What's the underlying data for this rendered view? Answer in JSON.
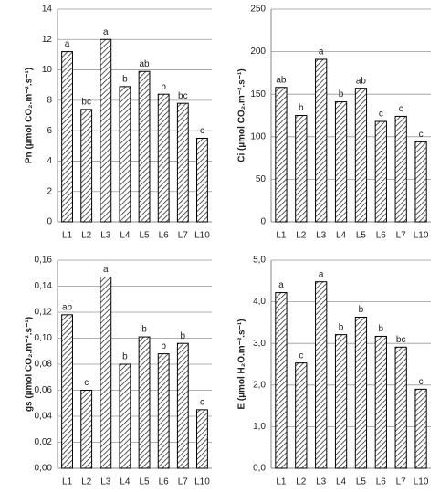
{
  "chart_data": [
    {
      "type": "bar",
      "ylabel": "Pn (µmol CO₂.m⁻².s⁻¹)",
      "categories": [
        "L1",
        "L2",
        "L3",
        "L4",
        "L5",
        "L6",
        "L7",
        "L10"
      ],
      "values": [
        11.2,
        7.4,
        12.0,
        8.9,
        9.9,
        8.4,
        7.8,
        5.5
      ],
      "annotations": [
        "a",
        "bc",
        "a",
        "b",
        "ab",
        "b",
        "bc",
        "c"
      ],
      "ylim": [
        0,
        14
      ],
      "yticks": [
        0,
        2,
        4,
        6,
        8,
        10,
        12,
        14
      ],
      "grid": true,
      "color": "#000000"
    },
    {
      "type": "bar",
      "ylabel": "Ci (µmol CO₂.m⁻².s⁻¹)",
      "categories": [
        "L1",
        "L2",
        "L3",
        "L4",
        "L5",
        "L6",
        "L7",
        "L10"
      ],
      "values": [
        158,
        125,
        191,
        141,
        157,
        118,
        124,
        94
      ],
      "annotations": [
        "ab",
        "b",
        "a",
        "b",
        "ab",
        "c",
        "c",
        "c"
      ],
      "ylim": [
        0,
        250
      ],
      "yticks": [
        0,
        50,
        100,
        150,
        200,
        250
      ],
      "grid": true,
      "color": "#000000"
    },
    {
      "type": "bar",
      "ylabel": "gs (µmol CO₂.m⁻².s⁻¹)",
      "categories": [
        "L1",
        "L2",
        "L3",
        "L4",
        "L5",
        "L6",
        "L7",
        "L10"
      ],
      "values": [
        0.118,
        0.06,
        0.147,
        0.08,
        0.101,
        0.088,
        0.096,
        0.045
      ],
      "annotations": [
        "ab",
        "c",
        "a",
        "b",
        "b",
        "b",
        "b",
        "c"
      ],
      "ylim": [
        0,
        0.16
      ],
      "yticks": [
        {
          "value": 0,
          "label": "0,00"
        },
        {
          "value": 0.02,
          "label": "0,02"
        },
        {
          "value": 0.04,
          "label": "0,04"
        },
        {
          "value": 0.06,
          "label": "0,06"
        },
        {
          "value": 0.08,
          "label": "0,08"
        },
        {
          "value": 0.1,
          "label": "0,10"
        },
        {
          "value": 0.12,
          "label": "0,12"
        },
        {
          "value": 0.14,
          "label": "0,14"
        },
        {
          "value": 0.16,
          "label": "0,16"
        }
      ],
      "grid": true,
      "color": "#000000"
    },
    {
      "type": "bar",
      "ylabel": "E (µmol H₂O.m⁻².s⁻¹)",
      "categories": [
        "L1",
        "L2",
        "L3",
        "L4",
        "L5",
        "L6",
        "L7",
        "L10"
      ],
      "values": [
        4.22,
        2.53,
        4.48,
        3.21,
        3.63,
        3.17,
        2.91,
        1.9
      ],
      "annotations": [
        "a",
        "c",
        "a",
        "b",
        "b",
        "b",
        "bc",
        "c"
      ],
      "ylim": [
        0,
        5
      ],
      "yticks": [
        {
          "value": 0,
          "label": "0,0"
        },
        {
          "value": 1,
          "label": "1,0"
        },
        {
          "value": 2,
          "label": "2,0"
        },
        {
          "value": 3,
          "label": "3,0"
        },
        {
          "value": 4,
          "label": "4,0"
        },
        {
          "value": 5,
          "label": "5,0"
        }
      ],
      "grid": true,
      "color": "#000000"
    }
  ]
}
